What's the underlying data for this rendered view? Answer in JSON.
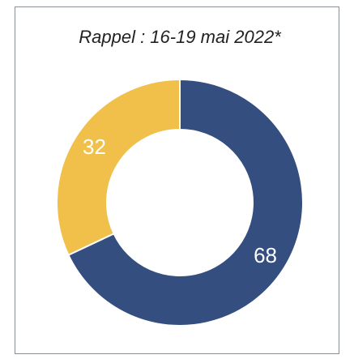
{
  "chart_data": {
    "type": "pie",
    "title": "Rappel : 16-19 mai 2022*",
    "values": [
      68,
      32
    ],
    "colors": [
      "#344e80",
      "#f0c04a"
    ],
    "donut": true
  }
}
